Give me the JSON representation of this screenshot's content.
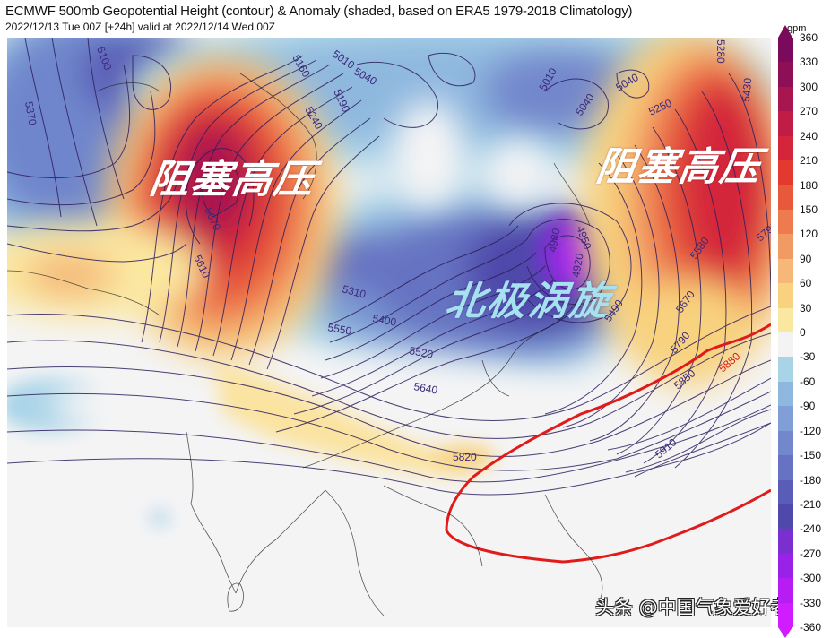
{
  "header": {
    "title": "ECMWF 500mb Geopotential Height (contour) & Anomaly (shaded, based on ERA5 1979-2018 Climatology)",
    "subtitle": "2022/12/13 Tue 00Z [+24h] valid at 2022/12/14 Wed 00Z"
  },
  "annotations": {
    "blocking_high_west": "阻塞高压",
    "blocking_high_east": "阻塞高压",
    "polar_vortex": "北极涡旋"
  },
  "watermark": "头条 @中国气象爱好者",
  "colorbar": {
    "unit": "gpm",
    "ticks": [
      "360",
      "330",
      "300",
      "270",
      "240",
      "210",
      "180",
      "150",
      "120",
      "90",
      "60",
      "30",
      "0",
      "-30",
      "-60",
      "-90",
      "-120",
      "-150",
      "-180",
      "-210",
      "-240",
      "-270",
      "-300",
      "-330",
      "-360"
    ],
    "colors": [
      "#7a0a5c",
      "#8f0f56",
      "#a81650",
      "#bf1d45",
      "#d4253a",
      "#e23a2e",
      "#e8583a",
      "#ee7a4f",
      "#f29a63",
      "#f5b878",
      "#f8d27e",
      "#fbe8a0",
      "#f3f3f3",
      "#f3f3f3",
      "#a9d4e8",
      "#8fb8df",
      "#7f9fd6",
      "#7388cc",
      "#6673c2",
      "#5a5db7",
      "#5049ab",
      "#7a2fd0",
      "#9a22e6",
      "#b71df2",
      "#d01cff"
    ]
  },
  "contour_labels": {
    "standard": [
      "5100",
      "5370",
      "5160",
      "5010",
      "5040",
      "5190",
      "5240",
      "5670",
      "5610",
      "5310",
      "5400",
      "5550",
      "5520",
      "5640",
      "5820",
      "5010",
      "5040",
      "5040",
      "5250",
      "5280",
      "5430",
      "4980",
      "4950",
      "4920",
      "5490",
      "5580",
      "5670",
      "5790",
      "5790",
      "5850",
      "5910"
    ],
    "highlight_5880": "5880"
  },
  "colors": {
    "contour_line": "#2e1f5e",
    "label_purple": "#3b2a7a",
    "ridge_5880": "#e11a1a",
    "coastline": "#222222"
  }
}
